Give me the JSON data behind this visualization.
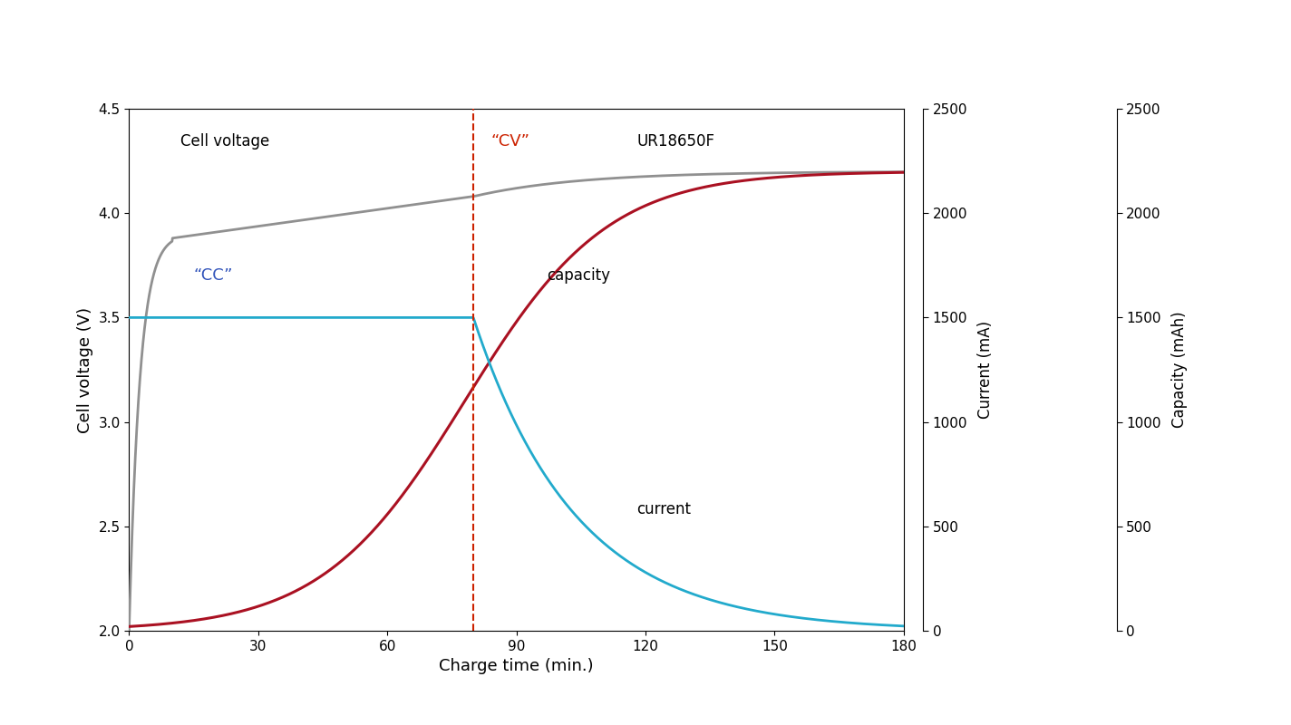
{
  "xlabel": "Charge time (min.)",
  "ylabel_left": "Cell voltage (V)",
  "ylabel_right1": "Current (mA)",
  "ylabel_right2": "Capacity (mAh)",
  "model_label": "UR18650F",
  "cc_label": "“CC”",
  "cv_label": "“CV”",
  "voltage_label": "Cell voltage",
  "capacity_label": "capacity",
  "current_label": "current",
  "xlim": [
    0,
    180
  ],
  "ylim_left": [
    2.0,
    4.5
  ],
  "ylim_right": [
    0,
    2500
  ],
  "x_ticks": [
    0,
    30,
    60,
    90,
    120,
    150,
    180
  ],
  "y_ticks_left": [
    2.0,
    2.5,
    3.0,
    3.5,
    4.0,
    4.5
  ],
  "y_ticks_right": [
    0,
    500,
    1000,
    1500,
    2000,
    2500
  ],
  "dashed_x": 80,
  "voltage_color": "#909090",
  "capacity_color": "#aa1122",
  "current_color": "#22aacc",
  "dashed_color": "#cc2200",
  "cc_label_color": "#3355bb",
  "cv_label_color": "#cc2200",
  "background_color": "#ffffff",
  "fig_bg_color": "#ffffff"
}
